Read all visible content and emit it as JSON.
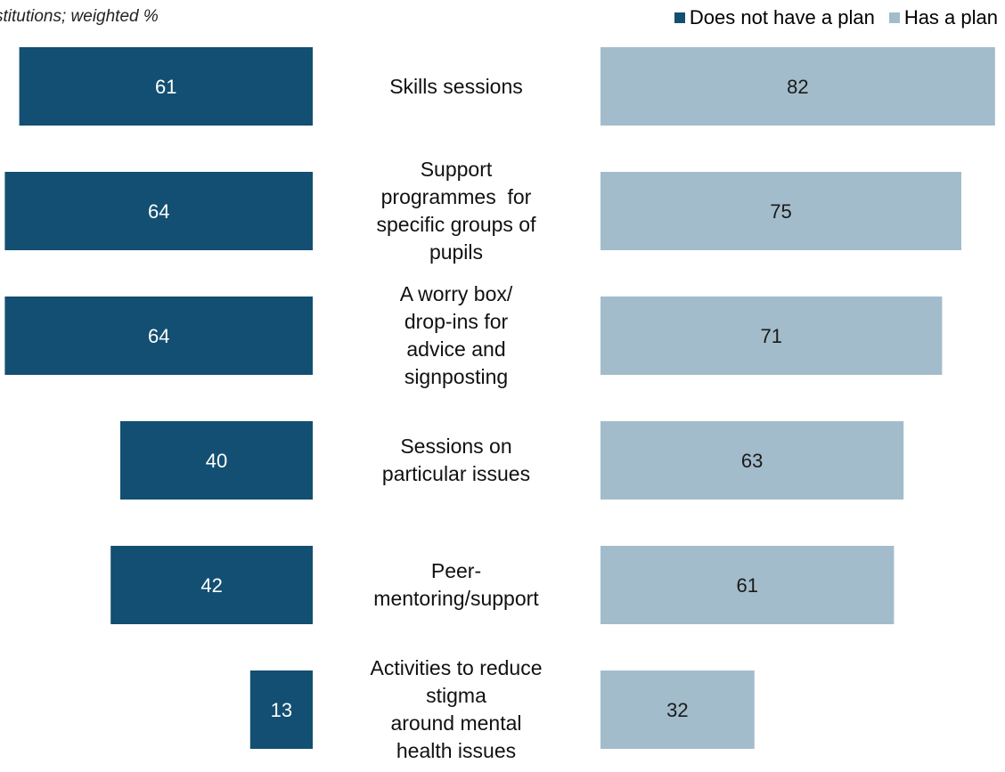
{
  "header": {
    "subtitle": "stitutions; weighted %"
  },
  "legend": [
    {
      "label": "Does not have a plan",
      "color": "#134f72"
    },
    {
      "label": "Has a plan",
      "color": "#a3bccb"
    }
  ],
  "chart_data": {
    "type": "bar",
    "orientation": "horizontal-diverging",
    "title": "",
    "xlabel": "",
    "ylabel": "",
    "unit": "weighted %",
    "categories": [
      "Skills sessions",
      "Support programmes for specific groups of pupils",
      "A worry box/ drop-ins for advice and signposting",
      "Sessions on particular issues",
      "Peer-mentoring/support",
      "Activities to reduce stigma around mental health issues"
    ],
    "category_lines": [
      [
        "Skills sessions"
      ],
      [
        "Support",
        "programmes  for",
        "specific groups of",
        "pupils"
      ],
      [
        "A worry box/",
        "drop-ins for",
        "advice and",
        "signposting"
      ],
      [
        "Sessions on",
        "particular issues"
      ],
      [
        "Peer-",
        "mentoring/support"
      ],
      [
        "Activities to reduce",
        "stigma",
        "around mental",
        "health issues"
      ]
    ],
    "series": [
      {
        "name": "Does not have a plan",
        "color": "#134f72",
        "values": [
          61,
          64,
          64,
          40,
          42,
          13
        ]
      },
      {
        "name": "Has a plan",
        "color": "#a3bccb",
        "values": [
          82,
          75,
          71,
          63,
          61,
          32
        ]
      }
    ],
    "legend_position": "top-right",
    "grid": false,
    "data_labels": true
  }
}
